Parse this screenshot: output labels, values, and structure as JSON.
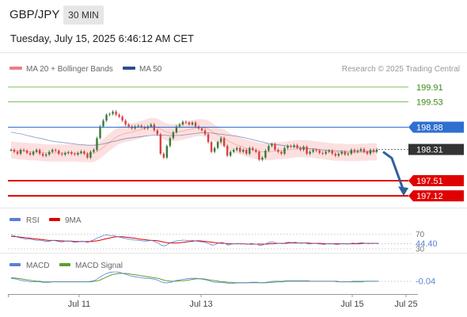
{
  "header": {
    "symbol": "GBP/JPY",
    "interval": "30 MIN",
    "datetime": "Tuesday, July 15, 2025 6:46:12 AM CET"
  },
  "colors": {
    "bb_band": "#fbd6d6",
    "bb_legend": "#f08080",
    "ma50": "#2c4f8f",
    "resistance": "#7fbf5f",
    "pivot": "#2f6fd0",
    "support": "#e00000",
    "current": "#333333",
    "arrow": "#2f5f9f",
    "bull": "#3a7a3a",
    "bear": "#d94040",
    "rsi": "#5b7fd6",
    "rsi_ma": "#e00000",
    "macd": "#5b7fd6",
    "macd_signal": "#5aa02c"
  },
  "chart_data": [
    {
      "type": "line",
      "name": "price",
      "legend": [
        "MA 20 + Bollinger Bands",
        "MA 50"
      ],
      "copyright": "Research © 2025 Trading Central",
      "x_ticks": [
        "Jul 11",
        "Jul 13",
        "Jul 15",
        "Jul 25"
      ],
      "ylim": [
        196.9,
        200.15
      ],
      "close": [
        198.3,
        198.25,
        198.2,
        198.3,
        198.28,
        198.22,
        198.18,
        198.25,
        198.3,
        198.2,
        198.15,
        198.18,
        198.25,
        198.3,
        198.28,
        198.2,
        198.18,
        198.22,
        198.24,
        198.2,
        198.18,
        198.22,
        198.26,
        198.2,
        198.1,
        198.25,
        198.3,
        198.6,
        198.9,
        199.05,
        199.2,
        199.22,
        199.28,
        199.2,
        199.15,
        199.05,
        198.95,
        198.9,
        198.85,
        198.9,
        198.92,
        198.88,
        198.85,
        198.9,
        198.95,
        198.8,
        198.7,
        198.2,
        198.1,
        198.4,
        198.6,
        198.75,
        198.9,
        198.95,
        199.02,
        199.0,
        198.95,
        199.0,
        198.9,
        198.85,
        198.8,
        198.7,
        198.5,
        198.25,
        198.35,
        198.5,
        198.6,
        198.4,
        198.15,
        198.25,
        198.3,
        198.35,
        198.25,
        198.3,
        198.2,
        198.35,
        198.3,
        198.25,
        198.05,
        198.1,
        198.28,
        198.4,
        198.45,
        198.3,
        198.25,
        198.2,
        198.35,
        198.4,
        198.38,
        198.42,
        198.35,
        198.3,
        198.38,
        198.2,
        198.25,
        198.3,
        198.28,
        198.22,
        198.2,
        198.25,
        198.28,
        198.2,
        198.15,
        198.2,
        198.25,
        198.18,
        198.2,
        198.3,
        198.25,
        198.28,
        198.32,
        198.25,
        198.2,
        198.3,
        198.25,
        198.31
      ],
      "ma20": [
        198.3,
        198.29,
        198.28,
        198.27,
        198.27,
        198.26,
        198.25,
        198.25,
        198.25,
        198.24,
        198.23,
        198.22,
        198.22,
        198.22,
        198.22,
        198.22,
        198.22,
        198.22,
        198.22,
        198.22,
        198.22,
        198.21,
        198.21,
        198.21,
        198.2,
        198.2,
        198.21,
        198.25,
        198.3,
        198.36,
        198.43,
        198.5,
        198.56,
        198.62,
        198.67,
        198.7,
        198.72,
        198.74,
        198.75,
        198.78,
        198.8,
        198.82,
        198.85,
        198.88,
        198.9,
        198.9,
        198.88,
        198.84,
        198.79,
        198.75,
        198.74,
        198.74,
        198.75,
        198.76,
        198.78,
        198.8,
        198.82,
        198.84,
        198.86,
        198.87,
        198.87,
        198.86,
        198.84,
        198.78,
        198.73,
        198.68,
        198.64,
        198.6,
        198.55,
        198.5,
        198.46,
        198.43,
        198.4,
        198.37,
        198.34,
        198.32,
        198.3,
        198.28,
        198.26,
        198.25,
        198.25,
        198.25,
        198.26,
        198.27,
        198.28,
        198.28,
        198.29,
        198.3,
        198.31,
        198.32,
        198.33,
        198.33,
        198.33,
        198.33,
        198.32,
        198.31,
        198.3,
        198.29,
        198.28,
        198.27,
        198.26,
        198.25,
        198.24,
        198.24,
        198.24,
        198.23,
        198.23,
        198.23,
        198.23,
        198.23,
        198.24,
        198.24,
        198.24,
        198.25,
        198.25,
        198.25
      ],
      "ma50": [
        198.75,
        198.74,
        198.72,
        198.71,
        198.69,
        198.67,
        198.65,
        198.63,
        198.61,
        198.6,
        198.58,
        198.56,
        198.54,
        198.52,
        198.51,
        198.5,
        198.49,
        198.48,
        198.47,
        198.46,
        198.45,
        198.44,
        198.43,
        198.43,
        198.42,
        198.42,
        198.42,
        198.43,
        198.44,
        198.45,
        198.47,
        198.49,
        198.51,
        198.53,
        198.55,
        198.57,
        198.59,
        198.6,
        198.61,
        198.62,
        198.63,
        198.64,
        198.65,
        198.66,
        198.67,
        198.68,
        198.68,
        198.68,
        198.68,
        198.67,
        198.67,
        198.67,
        198.67,
        198.67,
        198.68,
        198.69,
        198.7,
        198.71,
        198.72,
        198.73,
        198.74,
        198.74,
        198.74,
        198.73,
        198.72,
        198.71,
        198.7,
        198.69,
        198.68,
        198.67,
        198.66,
        198.65,
        198.63,
        198.62,
        198.6,
        198.58,
        198.56,
        198.54,
        198.52,
        198.5,
        198.48,
        198.46,
        198.45,
        198.44,
        198.43,
        198.42,
        198.41,
        198.4,
        198.39,
        198.38,
        198.37,
        198.36,
        198.35,
        198.34,
        198.33,
        198.33,
        198.32,
        198.31,
        198.3,
        198.3,
        198.29,
        198.28,
        198.28,
        198.27,
        198.27,
        198.26,
        198.26,
        198.26,
        198.26,
        198.26,
        198.26,
        198.26,
        198.26,
        198.26,
        198.26,
        198.26
      ],
      "levels": [
        {
          "value": "199.91",
          "kind": "resistance"
        },
        {
          "value": "199.53",
          "kind": "resistance"
        },
        {
          "value": "198.88",
          "kind": "pivot"
        },
        {
          "value": "198.31",
          "kind": "current"
        },
        {
          "value": "197.51",
          "kind": "support"
        },
        {
          "value": "197.12",
          "kind": "support"
        }
      ],
      "forecast_target": 197.12
    },
    {
      "type": "line",
      "name": "RSI",
      "legend": [
        "RSI",
        "9MA"
      ],
      "ylim": [
        30,
        80
      ],
      "levels": [
        "70",
        "30"
      ],
      "last_value": "44.40",
      "rsi": [
        68,
        66,
        62,
        60,
        58,
        56,
        57,
        55,
        53,
        54,
        52,
        50,
        51,
        53,
        52,
        50,
        49,
        51,
        52,
        50,
        48,
        49,
        51,
        50,
        47,
        52,
        55,
        60,
        63,
        67,
        68,
        66,
        67,
        64,
        62,
        60,
        58,
        56,
        55,
        54,
        53,
        52,
        51,
        52,
        53,
        50,
        46,
        40,
        38,
        42,
        47,
        50,
        52,
        53,
        54,
        53,
        52,
        53,
        51,
        50,
        49,
        47,
        44,
        40,
        42,
        46,
        48,
        45,
        40,
        43,
        44,
        45,
        43,
        44,
        42,
        45,
        44,
        43,
        39,
        41,
        45,
        48,
        49,
        46,
        45,
        44,
        47,
        48,
        47,
        48,
        46,
        45,
        47,
        43,
        44,
        45,
        44,
        43,
        42,
        44,
        45,
        43,
        42,
        43,
        45,
        43,
        44,
        46,
        45,
        46,
        47,
        45,
        44,
        46,
        45,
        44
      ],
      "rsi_ma": [
        64,
        64,
        63,
        62,
        61,
        60,
        59,
        58,
        57,
        56,
        55,
        54,
        53,
        53,
        53,
        52,
        52,
        51,
        51,
        51,
        50,
        50,
        50,
        50,
        50,
        50,
        51,
        52,
        54,
        56,
        58,
        60,
        62,
        63,
        63,
        63,
        62,
        61,
        60,
        59,
        57,
        56,
        55,
        54,
        53,
        53,
        52,
        50,
        48,
        47,
        46,
        46,
        46,
        47,
        48,
        49,
        50,
        51,
        52,
        52,
        51,
        50,
        49,
        48,
        47,
        46,
        45,
        45,
        44,
        44,
        44,
        44,
        44,
        44,
        43,
        43,
        43,
        43,
        43,
        43,
        43,
        44,
        44,
        45,
        45,
        45,
        45,
        46,
        46,
        46,
        46,
        46,
        46,
        46,
        45,
        45,
        45,
        45,
        44,
        44,
        44,
        44,
        44,
        44,
        44,
        44,
        44,
        44,
        44,
        44,
        45,
        45,
        45,
        45,
        45,
        45
      ]
    },
    {
      "type": "line",
      "name": "MACD",
      "legend": [
        "MACD",
        "MACD Signal"
      ],
      "ylim": [
        -0.25,
        0.2
      ],
      "last_value": "-0.04",
      "macd": [
        0.02,
        0.01,
        0.0,
        -0.02,
        -0.03,
        -0.04,
        -0.05,
        -0.05,
        -0.05,
        -0.05,
        -0.06,
        -0.06,
        -0.06,
        -0.05,
        -0.05,
        -0.05,
        -0.05,
        -0.05,
        -0.05,
        -0.05,
        -0.05,
        -0.05,
        -0.05,
        -0.05,
        -0.05,
        -0.04,
        -0.03,
        0.01,
        0.05,
        0.09,
        0.12,
        0.14,
        0.15,
        0.15,
        0.14,
        0.12,
        0.1,
        0.08,
        0.06,
        0.05,
        0.04,
        0.03,
        0.02,
        0.02,
        0.01,
        0.0,
        -0.02,
        -0.05,
        -0.07,
        -0.07,
        -0.06,
        -0.04,
        -0.02,
        -0.01,
        0.0,
        0.01,
        0.02,
        0.02,
        0.02,
        0.01,
        0.0,
        -0.01,
        -0.03,
        -0.05,
        -0.06,
        -0.06,
        -0.06,
        -0.07,
        -0.08,
        -0.08,
        -0.08,
        -0.07,
        -0.07,
        -0.07,
        -0.07,
        -0.06,
        -0.06,
        -0.06,
        -0.07,
        -0.07,
        -0.06,
        -0.05,
        -0.04,
        -0.04,
        -0.04,
        -0.04,
        -0.03,
        -0.03,
        -0.03,
        -0.03,
        -0.03,
        -0.03,
        -0.03,
        -0.03,
        -0.04,
        -0.04,
        -0.04,
        -0.04,
        -0.04,
        -0.04,
        -0.04,
        -0.04,
        -0.05,
        -0.05,
        -0.05,
        -0.05,
        -0.05,
        -0.04,
        -0.04,
        -0.04,
        -0.04,
        -0.04,
        -0.04,
        -0.04,
        -0.04,
        -0.04
      ],
      "signal": [
        0.03,
        0.03,
        0.02,
        0.01,
        0.0,
        -0.01,
        -0.02,
        -0.03,
        -0.04,
        -0.04,
        -0.05,
        -0.05,
        -0.05,
        -0.05,
        -0.05,
        -0.05,
        -0.05,
        -0.05,
        -0.05,
        -0.05,
        -0.05,
        -0.05,
        -0.05,
        -0.05,
        -0.05,
        -0.05,
        -0.04,
        -0.03,
        -0.01,
        0.02,
        0.05,
        0.08,
        0.1,
        0.11,
        0.12,
        0.12,
        0.12,
        0.11,
        0.1,
        0.09,
        0.08,
        0.07,
        0.06,
        0.05,
        0.04,
        0.03,
        0.02,
        0.0,
        -0.02,
        -0.03,
        -0.04,
        -0.04,
        -0.04,
        -0.03,
        -0.03,
        -0.02,
        -0.01,
        0.0,
        0.01,
        0.01,
        0.01,
        0.0,
        -0.01,
        -0.02,
        -0.03,
        -0.04,
        -0.05,
        -0.05,
        -0.06,
        -0.06,
        -0.07,
        -0.07,
        -0.07,
        -0.07,
        -0.07,
        -0.07,
        -0.07,
        -0.07,
        -0.07,
        -0.07,
        -0.07,
        -0.06,
        -0.06,
        -0.05,
        -0.05,
        -0.05,
        -0.04,
        -0.04,
        -0.04,
        -0.04,
        -0.04,
        -0.04,
        -0.04,
        -0.04,
        -0.04,
        -0.04,
        -0.04,
        -0.04,
        -0.04,
        -0.04,
        -0.04,
        -0.04,
        -0.04,
        -0.05,
        -0.05,
        -0.05,
        -0.05,
        -0.05,
        -0.05,
        -0.05,
        -0.05,
        -0.04,
        -0.04,
        -0.04,
        -0.04,
        -0.04
      ]
    }
  ]
}
